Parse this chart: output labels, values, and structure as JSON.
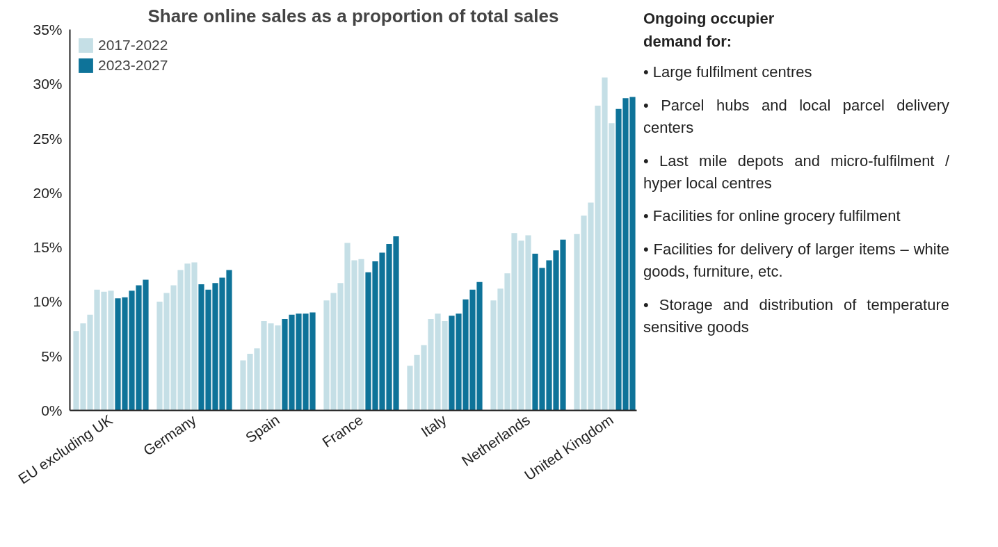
{
  "chart_data": [
    {
      "type": "bar",
      "title": "Share online sales as a proportion of total sales",
      "categories": [
        null,
        null,
        null,
        null,
        null,
        "EU excluding UK",
        null,
        null,
        null,
        null,
        null,
        null,
        null,
        null,
        null,
        null,
        null,
        "Germany",
        null,
        null,
        null,
        null,
        null,
        null,
        null,
        null,
        null,
        null,
        null,
        "Spain",
        null,
        null,
        null,
        null,
        null,
        null,
        null,
        null,
        null,
        null,
        null,
        "France",
        null,
        null,
        null,
        null,
        null,
        null,
        null,
        null,
        null,
        null,
        null,
        "Italy",
        null,
        null,
        null,
        null,
        null,
        null,
        null,
        null,
        null,
        null,
        null,
        "Netherlands",
        null,
        null,
        null,
        null,
        null,
        null,
        null,
        null,
        null,
        null,
        null,
        "United Kingdom",
        null,
        null,
        null
      ],
      "series": [
        {
          "name": "2017-2022",
          "color": "#c5dfe6",
          "values": [
            7.3,
            8.0,
            8.8,
            11.1,
            10.9,
            11.0,
            null,
            null,
            null,
            null,
            null,
            null,
            10.0,
            10.8,
            11.5,
            12.9,
            13.5,
            13.6,
            null,
            null,
            null,
            null,
            null,
            null,
            4.6,
            5.2,
            5.7,
            8.2,
            8.0,
            7.8,
            null,
            null,
            null,
            null,
            null,
            null,
            10.1,
            10.8,
            11.7,
            15.4,
            13.8,
            13.9,
            null,
            null,
            null,
            null,
            null,
            null,
            4.1,
            5.1,
            6.0,
            8.4,
            8.9,
            8.2,
            null,
            null,
            null,
            null,
            null,
            null,
            10.1,
            11.2,
            12.6,
            16.3,
            15.6,
            16.1,
            null,
            null,
            null,
            null,
            null,
            null,
            16.2,
            17.9,
            19.1,
            28.0,
            30.6,
            26.4,
            null,
            null,
            null
          ]
        },
        {
          "name": "2023-2027",
          "color": "#0e7399",
          "values": [
            null,
            null,
            null,
            null,
            null,
            null,
            10.3,
            10.4,
            11.0,
            11.5,
            12.0,
            null,
            null,
            null,
            null,
            null,
            null,
            null,
            11.6,
            11.1,
            11.7,
            12.2,
            12.9,
            null,
            null,
            null,
            null,
            null,
            null,
            null,
            8.4,
            8.8,
            8.9,
            8.9,
            9.0,
            null,
            null,
            null,
            null,
            null,
            null,
            null,
            12.7,
            13.7,
            14.5,
            15.3,
            16.0,
            null,
            null,
            null,
            null,
            null,
            null,
            null,
            8.7,
            8.9,
            10.2,
            11.1,
            11.8,
            null,
            null,
            null,
            null,
            null,
            null,
            null,
            14.4,
            13.1,
            13.8,
            14.7,
            15.7,
            null,
            null,
            null,
            null,
            null,
            null,
            null,
            27.7,
            28.7,
            28.8
          ]
        }
      ],
      "ylim": [
        0,
        35
      ],
      "yticks": [
        {
          "value": 0,
          "label": "0%"
        },
        {
          "value": 5,
          "label": "5%"
        },
        {
          "value": 10,
          "label": "10%"
        },
        {
          "value": 15,
          "label": "15%"
        },
        {
          "value": 20,
          "label": "20%"
        },
        {
          "value": 25,
          "label": "25%"
        },
        {
          "value": 30,
          "label": "30%"
        },
        {
          "value": 35,
          "label": "35%"
        }
      ],
      "grid": false,
      "legend": "top left"
    },
    {
      "type": "other",
      "title": "Ongoing occupier demand for:",
      "annotations": [
        "• Large fulfilment centres",
        "• Parcel hubs and local parcel delivery centers",
        "• Last mile depots and micro-fulfilment / hyper local centres",
        "• Facilities for online grocery fulfilment",
        "• Facilities for delivery of larger items – white goods, furniture, etc.",
        "• Storage and distribution of temperature sensitive goods"
      ]
    }
  ]
}
